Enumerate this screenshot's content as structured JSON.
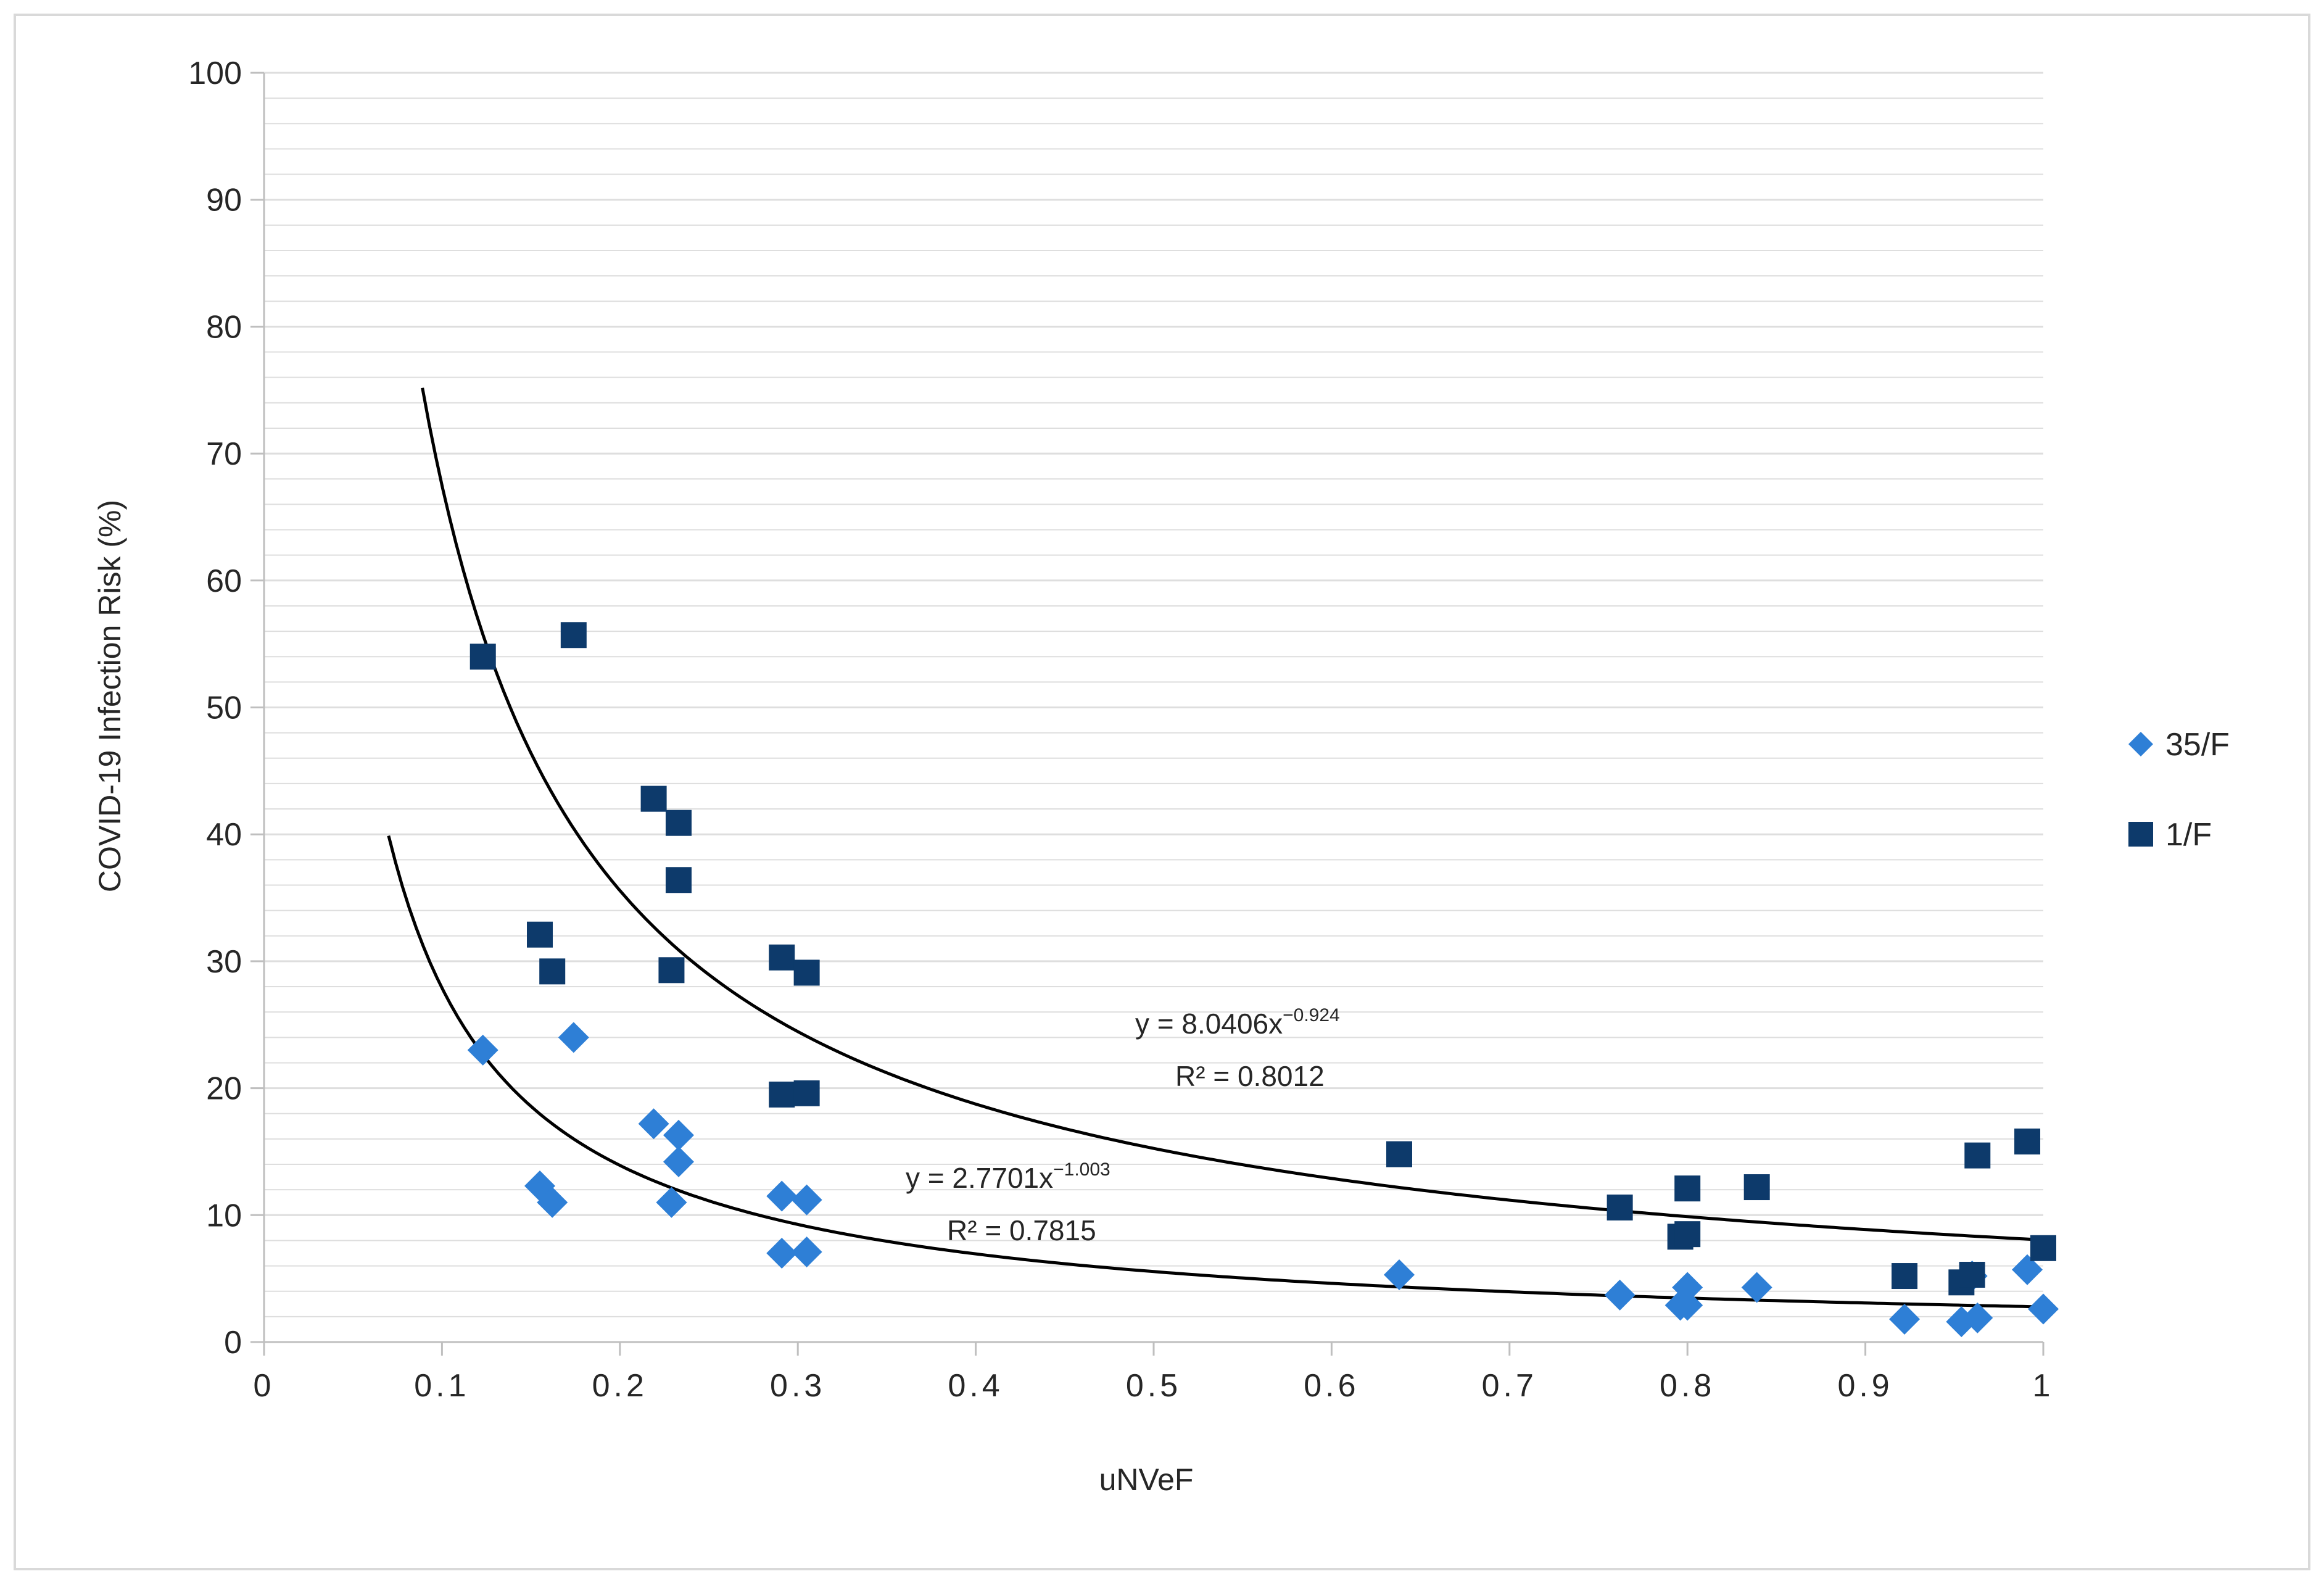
{
  "chart_data": {
    "type": "scatter",
    "xlabel": "uNVeF",
    "ylabel": "COVID-19 Infection Risk (%)",
    "xlim": [
      0,
      1
    ],
    "ylim": [
      0,
      100
    ],
    "x_ticks": [
      "0",
      "0.1",
      "0.2",
      "0.3",
      "0.4",
      "0.5",
      "0.6",
      "0.7",
      "0.8",
      "0.9",
      "1"
    ],
    "y_ticks": [
      "0",
      "10",
      "20",
      "30",
      "40",
      "50",
      "60",
      "70",
      "80",
      "90",
      "100"
    ],
    "grid": true,
    "legend_position": "right",
    "series": [
      {
        "name": "35/F",
        "marker": "diamond",
        "color": "#2E7FD6",
        "points": [
          [
            0.123,
            23.0
          ],
          [
            0.174,
            24.0
          ],
          [
            0.155,
            12.3
          ],
          [
            0.162,
            11.0
          ],
          [
            0.219,
            17.2
          ],
          [
            0.233,
            16.3
          ],
          [
            0.233,
            14.2
          ],
          [
            0.229,
            11.0
          ],
          [
            0.291,
            11.5
          ],
          [
            0.305,
            11.2
          ],
          [
            0.291,
            7.0
          ],
          [
            0.305,
            7.1
          ],
          [
            0.638,
            5.3
          ],
          [
            0.762,
            3.7
          ],
          [
            0.796,
            2.9
          ],
          [
            0.8,
            4.3
          ],
          [
            0.8,
            2.9
          ],
          [
            0.839,
            4.3
          ],
          [
            0.922,
            1.8
          ],
          [
            0.954,
            1.6
          ],
          [
            0.963,
            1.9
          ],
          [
            0.96,
            5.2
          ],
          [
            0.991,
            5.7
          ],
          [
            1.0,
            2.6
          ]
        ]
      },
      {
        "name": "1/F",
        "marker": "square",
        "color": "#0D3A6B",
        "points": [
          [
            0.123,
            54.0
          ],
          [
            0.174,
            55.7
          ],
          [
            0.155,
            32.1
          ],
          [
            0.162,
            29.2
          ],
          [
            0.219,
            42.8
          ],
          [
            0.233,
            40.9
          ],
          [
            0.233,
            36.4
          ],
          [
            0.229,
            29.3
          ],
          [
            0.291,
            30.3
          ],
          [
            0.305,
            29.1
          ],
          [
            0.291,
            19.5
          ],
          [
            0.305,
            19.6
          ],
          [
            0.638,
            14.8
          ],
          [
            0.762,
            10.6
          ],
          [
            0.796,
            8.3
          ],
          [
            0.8,
            12.1
          ],
          [
            0.8,
            8.5
          ],
          [
            0.839,
            12.2
          ],
          [
            0.922,
            5.2
          ],
          [
            0.954,
            4.7
          ],
          [
            0.963,
            14.7
          ],
          [
            0.96,
            5.3
          ],
          [
            0.991,
            15.8
          ],
          [
            1.0,
            7.4
          ]
        ]
      }
    ],
    "trendlines": [
      {
        "series": "1/F",
        "type": "power",
        "a": 8.0406,
        "b": -0.924,
        "x_start": 0.089,
        "x_end": 1.0,
        "eq_prefix": "y = 8.0406x",
        "eq_exp": "−0.924",
        "r2_label": "R² = 0.8012"
      },
      {
        "series": "35/F",
        "type": "power",
        "a": 2.7701,
        "b": -1.003,
        "x_start": 0.07,
        "x_end": 1.0,
        "eq_prefix": "y = 2.7701x",
        "eq_exp": "−1.003",
        "r2_label": "R² = 0.7815"
      }
    ]
  }
}
